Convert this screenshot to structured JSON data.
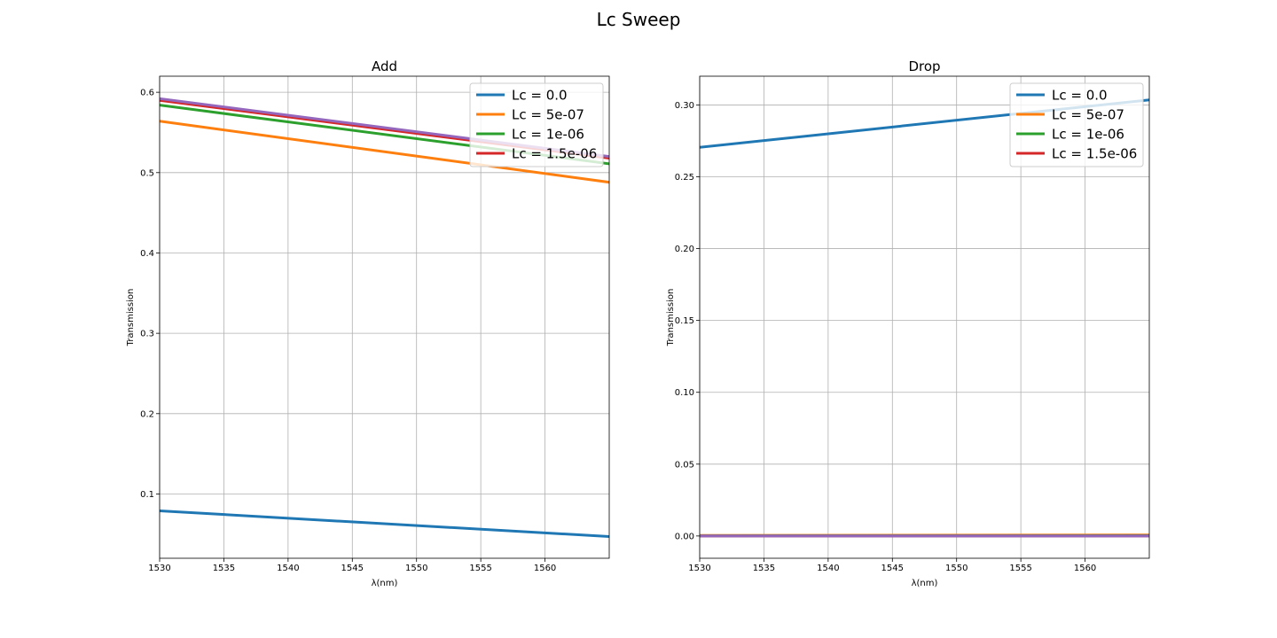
{
  "figure": {
    "suptitle": "Lc Sweep"
  },
  "chart_data": [
    {
      "type": "line",
      "title": "Add",
      "xlabel": "λ(nm)",
      "ylabel": "Transmission",
      "xlim": [
        1530,
        1565
      ],
      "ylim": [
        0.02,
        0.62
      ],
      "xticks": [
        1530,
        1535,
        1540,
        1545,
        1550,
        1555,
        1560
      ],
      "xtick_labels": [
        "1530",
        "1535",
        "1540",
        "1545",
        "1550",
        "1555",
        "1560"
      ],
      "yticks": [
        0.1,
        0.2,
        0.3,
        0.4,
        0.5,
        0.6
      ],
      "ytick_labels": [
        "0.1",
        "0.2",
        "0.3",
        "0.4",
        "0.5",
        "0.6"
      ],
      "grid": true,
      "legend": "top-right",
      "series": [
        {
          "name": "Lc = 0.0",
          "color": "#1f77b4",
          "x": [
            1530,
            1565
          ],
          "values": [
            0.079,
            0.047
          ]
        },
        {
          "name": "Lc = 5e-07",
          "color": "#ff7f0e",
          "x": [
            1530,
            1565
          ],
          "values": [
            0.564,
            0.488
          ]
        },
        {
          "name": "Lc = 1e-06",
          "color": "#2ca02c",
          "x": [
            1530,
            1565
          ],
          "values": [
            0.584,
            0.511
          ]
        },
        {
          "name": "Lc = 1.5e-06",
          "color": "#d62728",
          "x": [
            1530,
            1565
          ],
          "values": [
            0.59,
            0.518
          ]
        },
        {
          "color": "#9467bd",
          "x": [
            1530,
            1565
          ],
          "values": [
            0.592,
            0.52
          ]
        }
      ]
    },
    {
      "type": "line",
      "title": "Drop",
      "xlabel": "λ(nm)",
      "ylabel": "Transmission",
      "xlim": [
        1530,
        1565
      ],
      "ylim": [
        -0.0155,
        0.32
      ],
      "xticks": [
        1530,
        1535,
        1540,
        1545,
        1550,
        1555,
        1560
      ],
      "xtick_labels": [
        "1530",
        "1535",
        "1540",
        "1545",
        "1550",
        "1555",
        "1560"
      ],
      "yticks": [
        0.0,
        0.05,
        0.1,
        0.15,
        0.2,
        0.25,
        0.3
      ],
      "ytick_labels": [
        "0.00",
        "0.05",
        "0.10",
        "0.15",
        "0.20",
        "0.25",
        "0.30"
      ],
      "grid": true,
      "legend": "top-right",
      "series": [
        {
          "name": "Lc = 0.0",
          "color": "#1f77b4",
          "x": [
            1530,
            1565
          ],
          "values": [
            0.2705,
            0.3035
          ]
        },
        {
          "name": "Lc = 5e-07",
          "color": "#ff7f0e",
          "x": [
            1530,
            1565
          ],
          "values": [
            0.0004,
            0.0007
          ]
        },
        {
          "name": "Lc = 1e-06",
          "color": "#2ca02c",
          "x": [
            1530,
            1565
          ],
          "values": [
            0.0001,
            0.0002
          ]
        },
        {
          "name": "Lc = 1.5e-06",
          "color": "#d62728",
          "x": [
            1530,
            1565
          ],
          "values": [
            0.0,
            0.0
          ]
        },
        {
          "color": "#9467bd",
          "x": [
            1530,
            1565
          ],
          "values": [
            0.0,
            0.0
          ]
        }
      ]
    }
  ]
}
